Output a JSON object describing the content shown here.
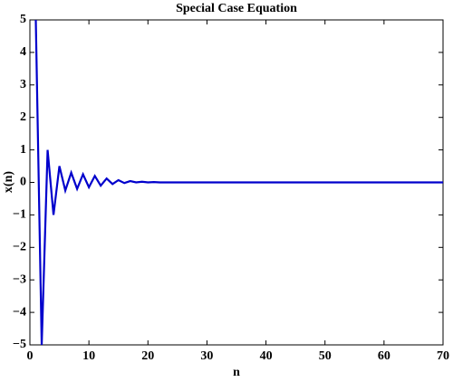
{
  "chart_data": {
    "type": "line",
    "title": "Special Case Equation",
    "xlabel": "n",
    "ylabel": "x(n)",
    "x": [
      1,
      2,
      3,
      4,
      5,
      6,
      7,
      8,
      9,
      10,
      11,
      12,
      13,
      14,
      15,
      16,
      17,
      18,
      19,
      20,
      21,
      22,
      23,
      24,
      25,
      26,
      27,
      28,
      29,
      30,
      31,
      32,
      33,
      34,
      35,
      36,
      37,
      38,
      39,
      40,
      41,
      42,
      43,
      44,
      45,
      46,
      47,
      48,
      49,
      50,
      51,
      52,
      53,
      54,
      55,
      56,
      57,
      58,
      59,
      60,
      61,
      62,
      63,
      64,
      65,
      66,
      67,
      68,
      69,
      70
    ],
    "series": [
      {
        "color": "#0000cc",
        "values": [
          5,
          -5,
          1,
          -1,
          0.5,
          -0.25,
          0.3,
          -0.2,
          0.25,
          -0.15,
          0.2,
          -0.1,
          0.12,
          -0.05,
          0.07,
          -0.02,
          0.04,
          0,
          0.02,
          0,
          0.01,
          0,
          0,
          0,
          0,
          0,
          0,
          0,
          0,
          0,
          0,
          0,
          0,
          0,
          0,
          0,
          0,
          0,
          0,
          0,
          0,
          0,
          0,
          0,
          0,
          0,
          0,
          0,
          0,
          0,
          0,
          0,
          0,
          0,
          0,
          0,
          0,
          0,
          0,
          0,
          0,
          0,
          0,
          0,
          0,
          0,
          0,
          0,
          0,
          0
        ]
      }
    ],
    "xlim": [
      0,
      70
    ],
    "xticks": [
      0,
      10,
      20,
      30,
      40,
      50,
      60,
      70
    ],
    "ylim": [
      -5,
      5
    ],
    "yticks": [
      {
        "value": -5,
        "label": "−5"
      },
      {
        "value": -4,
        "label": "−4"
      },
      {
        "value": -3,
        "label": "−3"
      },
      {
        "value": -2,
        "label": "−2"
      },
      {
        "value": -1,
        "label": "−1"
      },
      0,
      1,
      2,
      3,
      4,
      5
    ],
    "grid": false
  }
}
